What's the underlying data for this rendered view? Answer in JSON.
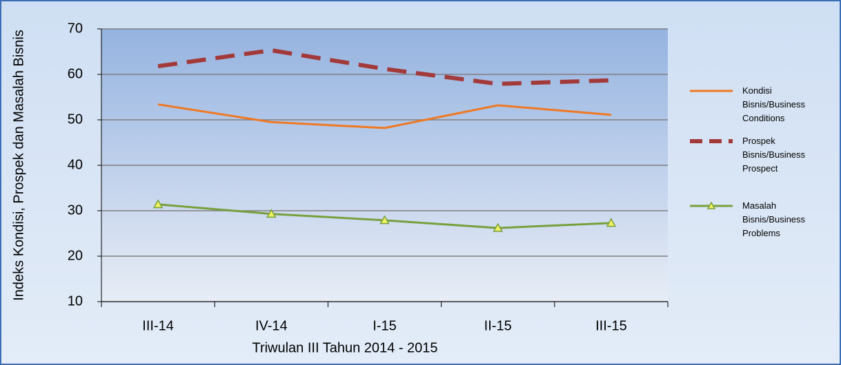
{
  "chart_data": {
    "type": "line",
    "y_label": "Indeks Kondisi, Prospek  dan Masalah Bisnis",
    "x_label": "Triwulan III Tahun 2014 - 2015",
    "categories": [
      "III-14",
      "IV-14",
      "I-15",
      "II-15",
      "III-15"
    ],
    "series": [
      {
        "name": "Kondisi Bisnis/Business Conditions",
        "color": "#f07822",
        "values": [
          53.4,
          49.5,
          48.2,
          53.2,
          51.1
        ]
      },
      {
        "name": "Prospek Bisnis/Business Prospect",
        "color": "#a33a3a",
        "dashed": true,
        "values": [
          61.8,
          65.3,
          61.2,
          57.9,
          58.7
        ]
      },
      {
        "name": "Masalah Bisnis/Business Problems",
        "color": "#77a03c",
        "marker": "triangle",
        "values": [
          31.4,
          29.3,
          27.9,
          26.2,
          27.3
        ]
      }
    ],
    "ylim": [
      10,
      70
    ],
    "yticks": [
      10,
      20,
      30,
      40,
      50,
      60,
      70
    ],
    "grid": true,
    "legend": "right"
  }
}
